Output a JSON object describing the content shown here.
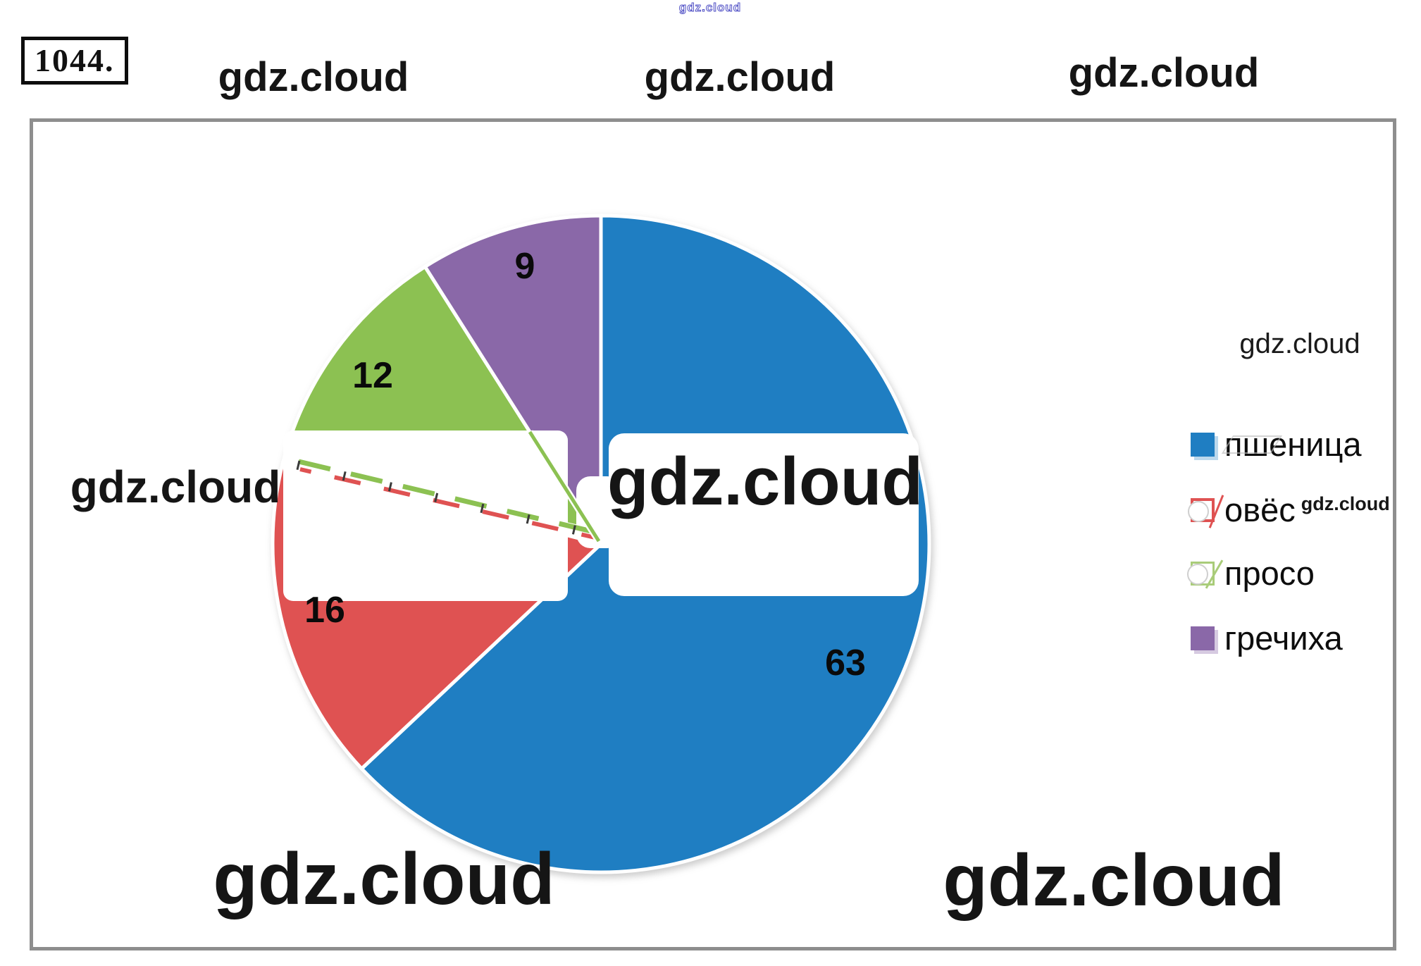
{
  "problem_number": "1044.",
  "watermarks": {
    "tiny_top": "gdz.cloud",
    "top_left": "gdz.cloud",
    "top_center": "gdz.cloud",
    "top_right": "gdz.cloud",
    "mid_left": "gdz.cloud",
    "pie_center": "gdz.cloud",
    "bottom_left": "gdz.cloud",
    "bottom_right": "gdz.cloud",
    "legend_top": "gdz.cloud",
    "legend_inline": "gdz.cloud"
  },
  "chart_data": {
    "type": "pie",
    "categories": [
      "пшеница",
      "овёс",
      "просо",
      "гречиха"
    ],
    "values": [
      63,
      16,
      12,
      9
    ],
    "data_labels": [
      "63",
      "16",
      "12",
      "9"
    ],
    "colors": [
      "#1f7ec2",
      "#df5252",
      "#8cc152",
      "#8a68a8"
    ],
    "start_angle_deg": 0,
    "direction": "clockwise",
    "legend_position": "right",
    "title": ""
  },
  "legend": {
    "items": [
      {
        "label": "пшеница",
        "color": "#1f7ec2",
        "marker": "solid"
      },
      {
        "label": "овёс",
        "color": "#df5252",
        "marker": "outlined-damaged"
      },
      {
        "label": "просо",
        "color": "#8cc152",
        "marker": "outlined-damaged"
      },
      {
        "label": "гречиха",
        "color": "#8a68a8",
        "marker": "solid"
      }
    ]
  },
  "colors": {
    "chart_border": "#8e8e8e",
    "watermark_text": "#151515",
    "tiny_watermark": "#5353c6"
  }
}
